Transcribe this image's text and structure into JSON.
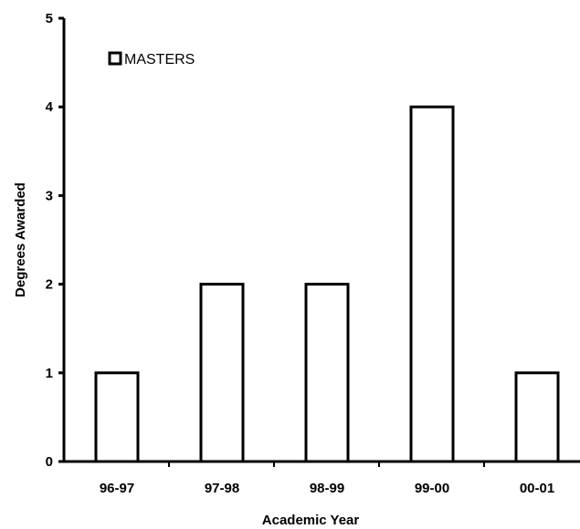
{
  "chart_data": {
    "type": "bar",
    "categories": [
      "96-97",
      "97-98",
      "98-99",
      "99-00",
      "00-01"
    ],
    "series": [
      {
        "name": "MASTERS",
        "values": [
          1,
          2,
          2,
          4,
          1
        ]
      }
    ],
    "xlabel": "Academic Year",
    "ylabel": "Degrees Awarded",
    "ylim": [
      0,
      5
    ],
    "yticks": [
      "0",
      "1",
      "2",
      "3",
      "4",
      "5"
    ],
    "grid": false,
    "legend_position": "top-left",
    "colors": {
      "bar_fill": "#ffffff",
      "bar_stroke": "#000000"
    }
  }
}
